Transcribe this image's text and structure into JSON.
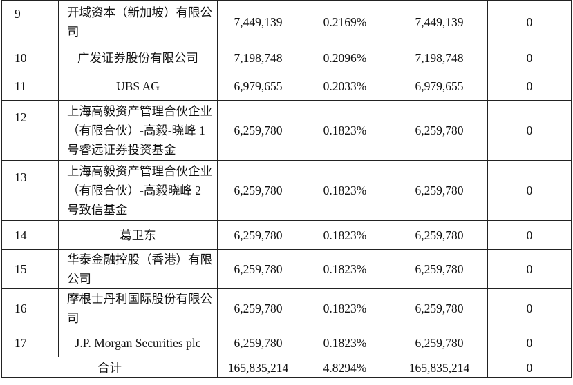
{
  "rows": [
    {
      "no": "9",
      "name": "开域资本（新加坡）有限公司",
      "shares": "7,449,139",
      "pct": "0.2169%",
      "shares2": "7,449,139",
      "last": "0"
    },
    {
      "no": "10",
      "name": "广发证券股份有限公司",
      "shares": "7,198,748",
      "pct": "0.2096%",
      "shares2": "7,198,748",
      "last": "0"
    },
    {
      "no": "11",
      "name": "UBS AG",
      "shares": "6,979,655",
      "pct": "0.2033%",
      "shares2": "6,979,655",
      "last": "0"
    },
    {
      "no": "12",
      "name": "上海高毅资产管理合伙企业（有限合伙）-高毅-晓峰 1 号睿远证券投资基金",
      "shares": "6,259,780",
      "pct": "0.1823%",
      "shares2": "6,259,780",
      "last": "0"
    },
    {
      "no": "13",
      "name": "上海高毅资产管理合伙企业（有限合伙）-高毅晓峰 2 号致信基金",
      "shares": "6,259,780",
      "pct": "0.1823%",
      "shares2": "6,259,780",
      "last": "0"
    },
    {
      "no": "14",
      "name": "葛卫东",
      "shares": "6,259,780",
      "pct": "0.1823%",
      "shares2": "6,259,780",
      "last": "0"
    },
    {
      "no": "15",
      "name": "华泰金融控股（香港）有限公司",
      "shares": "6,259,780",
      "pct": "0.1823%",
      "shares2": "6,259,780",
      "last": "0"
    },
    {
      "no": "16",
      "name": "摩根士丹利国际股份有限公司",
      "shares": "6,259,780",
      "pct": "0.1823%",
      "shares2": "6,259,780",
      "last": "0"
    },
    {
      "no": "17",
      "name": "J.P. Morgan Securities plc",
      "shares": "6,259,780",
      "pct": "0.1823%",
      "shares2": "6,259,780",
      "last": "0"
    }
  ],
  "total": {
    "label": "合计",
    "shares": "165,835,214",
    "pct": "4.8294%",
    "shares2": "165,835,214",
    "last": "0"
  }
}
